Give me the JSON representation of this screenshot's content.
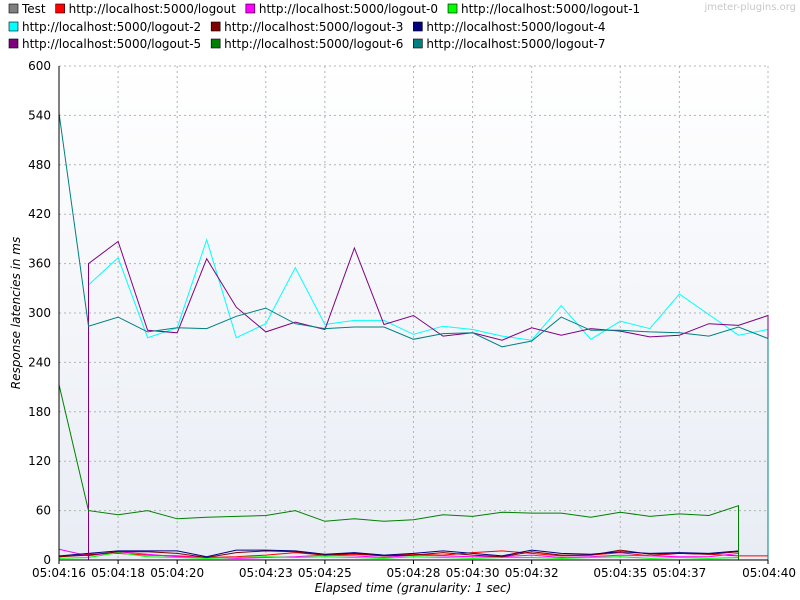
{
  "watermark": "jmeter-plugins.org",
  "chart_data": {
    "type": "line",
    "xlabel": "Elapsed time (granularity: 1 sec)",
    "ylabel": "Response latencies in ms",
    "ylim": [
      0,
      600
    ],
    "yticks": [
      0,
      60,
      120,
      180,
      240,
      300,
      360,
      420,
      480,
      540,
      600
    ],
    "xlim": [
      0,
      24
    ],
    "xtick_labels": [
      {
        "t": 0,
        "label": "05:04:16"
      },
      {
        "t": 2,
        "label": "05:04:18"
      },
      {
        "t": 4,
        "label": "05:04:20"
      },
      {
        "t": 7,
        "label": "05:04:23"
      },
      {
        "t": 9,
        "label": "05:04:25"
      },
      {
        "t": 12,
        "label": "05:04:28"
      },
      {
        "t": 14,
        "label": "05:04:30"
      },
      {
        "t": 16,
        "label": "05:04:32"
      },
      {
        "t": 19,
        "label": "05:04:35"
      },
      {
        "t": 21,
        "label": "05:04:37"
      },
      {
        "t": 24,
        "label": "05:04:40"
      }
    ],
    "grid": true,
    "legend_position": "top",
    "x": [
      0,
      1,
      2,
      3,
      4,
      5,
      6,
      7,
      8,
      9,
      10,
      11,
      12,
      13,
      14,
      15,
      16,
      17,
      18,
      19,
      20,
      21,
      22,
      23,
      24
    ],
    "series": [
      {
        "name": "Test",
        "color": "#808080",
        "values": [
          null,
          null,
          null,
          null,
          null,
          null,
          null,
          null,
          null,
          null,
          null,
          null,
          null,
          null,
          null,
          null,
          null,
          null,
          null,
          null,
          null,
          null,
          null,
          null,
          null
        ]
      },
      {
        "name": "http://localhost:5000/logout",
        "color": "#ff0000",
        "values": [
          4,
          7,
          8,
          6,
          5,
          3,
          4,
          6,
          9,
          6,
          7,
          5,
          7,
          6,
          9,
          11,
          8,
          5,
          6,
          9,
          5,
          8,
          7,
          5,
          5
        ]
      },
      {
        "name": "http://localhost:5000/logout-0",
        "color": "#ff00ff",
        "values": [
          13,
          5,
          10,
          7,
          4,
          3,
          2,
          3,
          4,
          6,
          5,
          3,
          6,
          5,
          4,
          4,
          6,
          3,
          4,
          6,
          5,
          4,
          4,
          8,
          null
        ]
      },
      {
        "name": "http://localhost:5000/logout-1",
        "color": "#00ff00",
        "values": [
          2,
          3,
          9,
          4,
          3,
          2,
          3,
          4,
          3,
          4,
          3,
          2,
          4,
          3,
          2,
          3,
          3,
          2,
          3,
          4,
          2,
          3,
          2,
          3,
          null
        ]
      },
      {
        "name": "http://localhost:5000/logout-2",
        "color": "#00ffff",
        "values": [
          null,
          334,
          367,
          270,
          282,
          389,
          270,
          287,
          355,
          286,
          291,
          291,
          274,
          284,
          280,
          272,
          267,
          309,
          268,
          290,
          281,
          323,
          298,
          273,
          280
        ]
      },
      {
        "name": "http://localhost:5000/logout-3",
        "color": "#800000",
        "values": [
          4,
          6,
          10,
          10,
          8,
          3,
          9,
          11,
          10,
          6,
          8,
          5,
          6,
          9,
          6,
          4,
          10,
          6,
          6,
          12,
          7,
          8,
          7,
          10,
          null
        ]
      },
      {
        "name": "http://localhost:5000/logout-4",
        "color": "#000080",
        "values": [
          5,
          8,
          11,
          11,
          11,
          4,
          12,
          12,
          11,
          7,
          9,
          6,
          8,
          11,
          8,
          5,
          12,
          8,
          7,
          10,
          8,
          9,
          8,
          11,
          null
        ]
      },
      {
        "name": "http://localhost:5000/logout-5",
        "color": "#800080",
        "values": [
          null,
          360,
          387,
          279,
          276,
          366,
          307,
          277,
          289,
          280,
          379,
          286,
          297,
          272,
          276,
          267,
          282,
          273,
          281,
          278,
          271,
          273,
          287,
          285,
          297
        ]
      },
      {
        "name": "http://localhost:5000/logout-6",
        "color": "#008000",
        "values": [
          213,
          60,
          55,
          60,
          50,
          52,
          53,
          54,
          60,
          47,
          50,
          47,
          49,
          55,
          53,
          58,
          57,
          57,
          52,
          58,
          53,
          56,
          54,
          66,
          null
        ]
      },
      {
        "name": "http://localhost:5000/logout-7",
        "color": "#008080",
        "values": [
          543,
          284,
          295,
          277,
          282,
          281,
          296,
          306,
          287,
          281,
          283,
          283,
          268,
          275,
          276,
          259,
          266,
          295,
          279,
          279,
          277,
          276,
          272,
          283,
          269
        ]
      }
    ]
  }
}
